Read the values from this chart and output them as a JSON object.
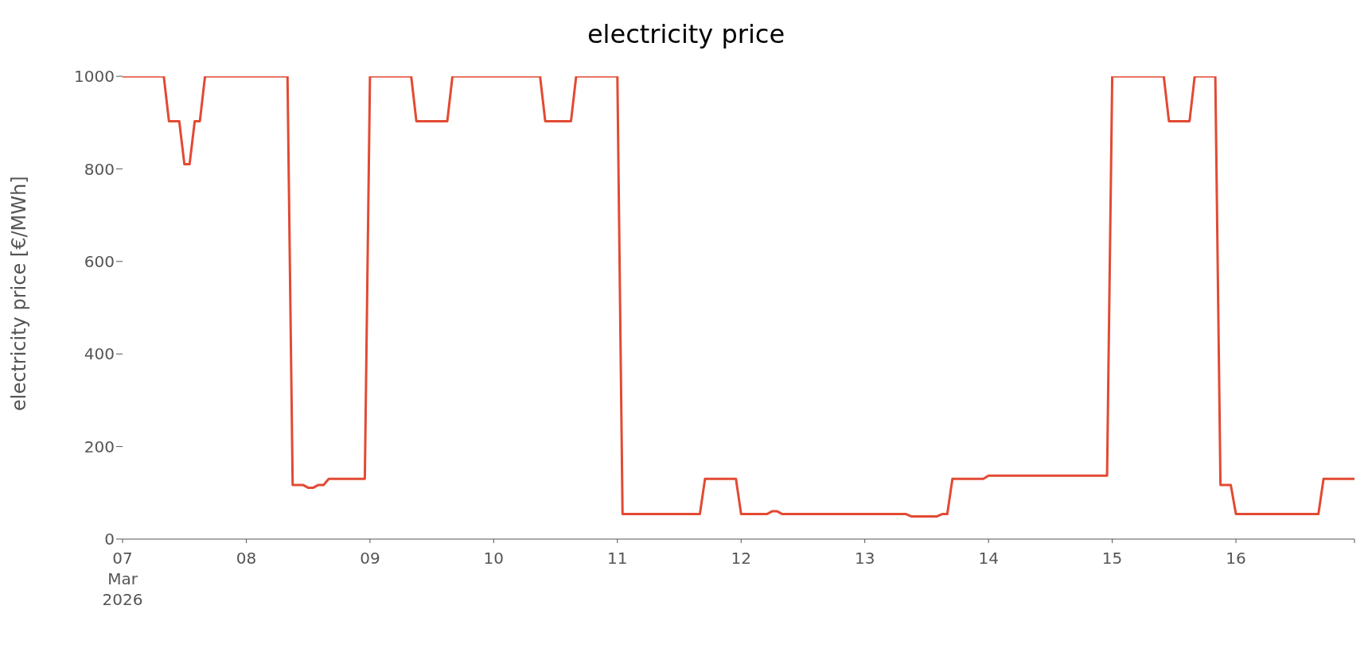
{
  "chart_data": {
    "type": "line",
    "title": "electricity price",
    "ylabel": "electricity price [€/MWh]",
    "x": [
      "2026-03-07T00:00",
      "2026-03-07T08:00",
      "2026-03-07T09:00",
      "2026-03-07T11:00",
      "2026-03-07T12:00",
      "2026-03-07T13:00",
      "2026-03-07T14:00",
      "2026-03-07T15:00",
      "2026-03-07T16:00",
      "2026-03-08T08:00",
      "2026-03-08T09:00",
      "2026-03-08T11:00",
      "2026-03-08T12:00",
      "2026-03-08T13:00",
      "2026-03-08T14:00",
      "2026-03-08T15:00",
      "2026-03-08T16:00",
      "2026-03-08T23:00",
      "2026-03-09T00:00",
      "2026-03-09T08:00",
      "2026-03-09T09:00",
      "2026-03-09T15:00",
      "2026-03-09T16:00",
      "2026-03-10T09:00",
      "2026-03-10T10:00",
      "2026-03-10T15:00",
      "2026-03-10T16:00",
      "2026-03-11T00:00",
      "2026-03-11T01:00",
      "2026-03-11T16:00",
      "2026-03-11T17:00",
      "2026-03-11T23:00",
      "2026-03-12T00:00",
      "2026-03-12T05:00",
      "2026-03-12T06:00",
      "2026-03-12T07:00",
      "2026-03-12T08:00",
      "2026-03-13T08:00",
      "2026-03-13T09:00",
      "2026-03-13T14:00",
      "2026-03-13T15:00",
      "2026-03-13T16:00",
      "2026-03-13T17:00",
      "2026-03-13T23:00",
      "2026-03-14T00:00",
      "2026-03-14T23:00",
      "2026-03-15T00:00",
      "2026-03-15T10:00",
      "2026-03-15T11:00",
      "2026-03-15T15:00",
      "2026-03-15T16:00",
      "2026-03-15T20:00",
      "2026-03-15T21:00",
      "2026-03-15T23:00",
      "2026-03-16T00:00",
      "2026-03-16T16:00",
      "2026-03-16T17:00",
      "2026-03-16T23:00"
    ],
    "series": [
      {
        "color": "#e24a33",
        "values": [
          1000,
          1000,
          903,
          903,
          810,
          810,
          903,
          903,
          1000,
          1000,
          117,
          117,
          111,
          111,
          117,
          117,
          130,
          130,
          1000,
          1000,
          903,
          903,
          1000,
          1000,
          903,
          903,
          1000,
          1000,
          54,
          54,
          130,
          130,
          54,
          54,
          60,
          60,
          54,
          54,
          49,
          49,
          54,
          54,
          130,
          130,
          137,
          137,
          1000,
          1000,
          903,
          903,
          1000,
          1000,
          117,
          117,
          54,
          54,
          130,
          130
        ]
      }
    ],
    "xlim": [
      "2026-03-07T00:00",
      "2026-03-16T23:00"
    ],
    "xticks": [
      {
        "value": "2026-03-07T00:00",
        "label": "07\nMar\n2026"
      },
      {
        "value": "2026-03-08T00:00",
        "label": "08"
      },
      {
        "value": "2026-03-09T00:00",
        "label": "09"
      },
      {
        "value": "2026-03-10T00:00",
        "label": "10"
      },
      {
        "value": "2026-03-11T00:00",
        "label": "11"
      },
      {
        "value": "2026-03-12T00:00",
        "label": "12"
      },
      {
        "value": "2026-03-13T00:00",
        "label": "13"
      },
      {
        "value": "2026-03-14T00:00",
        "label": "14"
      },
      {
        "value": "2026-03-15T00:00",
        "label": "15"
      },
      {
        "value": "2026-03-16T00:00",
        "label": "16"
      },
      {
        "value": "2026-03-16T23:00",
        "label": null
      }
    ],
    "ylim": [
      0,
      1000
    ],
    "yticks": [
      0,
      200,
      400,
      600,
      800,
      1000
    ],
    "grid": false,
    "legend": false,
    "marker": "none",
    "line_style": "solid"
  }
}
